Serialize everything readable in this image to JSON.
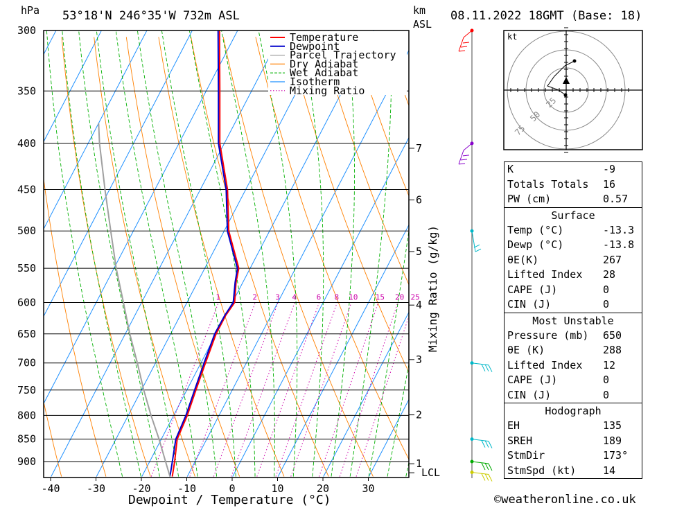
{
  "header": {
    "unit_left": "hPa",
    "location": "53°18'N  246°35'W  732m  ASL",
    "unit_km": "km",
    "unit_asl": "ASL",
    "datetime": "08.11.2022  18GMT  (Base: 18)"
  },
  "chart_data": {
    "type": "line",
    "subtype": "skew-T log-P sounding diagram",
    "xlabel": "Dewpoint / Temperature (°C)",
    "ylabel": "hPa",
    "right_axis_label": "Mixing Ratio (g/kg)",
    "x_ticks": [
      "-40",
      "-30",
      "-20",
      "-10",
      "0",
      "10",
      "20",
      "30"
    ],
    "xlim": [
      -42,
      38
    ],
    "pressure_levels": [
      300,
      350,
      400,
      450,
      500,
      550,
      600,
      650,
      700,
      750,
      800,
      850,
      900
    ],
    "pressure_labels": [
      "300",
      "350",
      "400",
      "450",
      "500",
      "550",
      "600",
      "650",
      "700",
      "750",
      "800",
      "850",
      "900"
    ],
    "ylim": [
      300,
      935
    ],
    "height_km": [
      {
        "p": 405,
        "label": "7"
      },
      {
        "p": 462,
        "label": "6"
      },
      {
        "p": 527,
        "label": "5"
      },
      {
        "p": 604,
        "label": "4"
      },
      {
        "p": 694,
        "label": "3"
      },
      {
        "p": 799,
        "label": "2"
      },
      {
        "p": 905,
        "label": "1"
      },
      {
        "p": 926,
        "label": "LCL"
      }
    ],
    "mixing_ratio_labels": [
      "1",
      "2",
      "3",
      "4",
      "6",
      "8",
      "10",
      "15",
      "20",
      "25"
    ],
    "legend": [
      {
        "name": "Temperature",
        "color": "#ff0000",
        "style": "solid"
      },
      {
        "name": "Dewpoint",
        "color": "#0000cc",
        "style": "solid"
      },
      {
        "name": "Parcel Trajectory",
        "color": "#a0a0a0",
        "style": "solid"
      },
      {
        "name": "Dry Adiabat",
        "color": "#ff8000",
        "style": "solid"
      },
      {
        "name": "Wet Adiabat",
        "color": "#00b000",
        "style": "dashed"
      },
      {
        "name": "Isotherm",
        "color": "#1e90ff",
        "style": "solid"
      },
      {
        "name": "Mixing Ratio",
        "color": "#cc00aa",
        "style": "dotted"
      }
    ],
    "series": [
      {
        "name": "Temperature",
        "color": "#ff0000",
        "points": [
          [
            935,
            -13.3
          ],
          [
            900,
            -14.5
          ],
          [
            850,
            -16.5
          ],
          [
            800,
            -17.0
          ],
          [
            750,
            -18.0
          ],
          [
            700,
            -19.0
          ],
          [
            650,
            -20.0
          ],
          [
            620,
            -20.0
          ],
          [
            600,
            -19.5
          ],
          [
            570,
            -21.5
          ],
          [
            550,
            -22.5
          ],
          [
            500,
            -29.0
          ],
          [
            450,
            -34.0
          ],
          [
            400,
            -41.0
          ],
          [
            350,
            -47.0
          ],
          [
            300,
            -54.0
          ]
        ]
      },
      {
        "name": "Dewpoint",
        "color": "#0000cc",
        "points": [
          [
            935,
            -13.8
          ],
          [
            900,
            -15.0
          ],
          [
            850,
            -16.8
          ],
          [
            800,
            -17.3
          ],
          [
            750,
            -18.3
          ],
          [
            700,
            -19.3
          ],
          [
            650,
            -20.3
          ],
          [
            620,
            -20.2
          ],
          [
            600,
            -19.8
          ],
          [
            570,
            -21.7
          ],
          [
            550,
            -22.8
          ],
          [
            500,
            -29.3
          ],
          [
            450,
            -34.3
          ],
          [
            400,
            -41.3
          ],
          [
            350,
            -47.3
          ],
          [
            300,
            -54.3
          ]
        ]
      },
      {
        "name": "Parcel Trajectory",
        "color": "#a0a0a0",
        "points": [
          [
            935,
            -13.8
          ],
          [
            900,
            -16.5
          ],
          [
            850,
            -20.5
          ],
          [
            800,
            -25.0
          ],
          [
            750,
            -29.5
          ],
          [
            700,
            -34.0
          ],
          [
            650,
            -39.0
          ],
          [
            600,
            -44.0
          ],
          [
            550,
            -49.5
          ],
          [
            500,
            -55.0
          ],
          [
            450,
            -61.0
          ],
          [
            400,
            -67.5
          ],
          [
            380,
            -70.0
          ]
        ]
      }
    ],
    "wind_barbs_levels": [
      300,
      400,
      500,
      700,
      850,
      900,
      925
    ],
    "hodograph": {
      "unit": "kt",
      "ring_labels": [
        "25",
        "50",
        "75"
      ]
    }
  },
  "stats": {
    "indices": [
      {
        "label": "K",
        "value": "-9"
      },
      {
        "label": "Totals Totals",
        "value": "16"
      },
      {
        "label": "PW (cm)",
        "value": "0.57"
      }
    ],
    "surface": {
      "title": "Surface",
      "rows": [
        {
          "label": "Temp (°C)",
          "value": "-13.3"
        },
        {
          "label": "Dewp (°C)",
          "value": "-13.8"
        },
        {
          "label": "θE(K)",
          "value": "267"
        },
        {
          "label": "Lifted Index",
          "value": "28"
        },
        {
          "label": "CAPE (J)",
          "value": "0"
        },
        {
          "label": "CIN (J)",
          "value": "0"
        }
      ]
    },
    "most_unstable": {
      "title": "Most Unstable",
      "rows": [
        {
          "label": "Pressure (mb)",
          "value": "650"
        },
        {
          "label": "θE (K)",
          "value": "288"
        },
        {
          "label": "Lifted Index",
          "value": "12"
        },
        {
          "label": "CAPE (J)",
          "value": "0"
        },
        {
          "label": "CIN (J)",
          "value": "0"
        }
      ]
    },
    "hodograph": {
      "title": "Hodograph",
      "rows": [
        {
          "label": "EH",
          "value": "135"
        },
        {
          "label": "SREH",
          "value": "189"
        },
        {
          "label": "StmDir",
          "value": "173°"
        },
        {
          "label": "StmSpd (kt)",
          "value": "14"
        }
      ]
    }
  },
  "footer": {
    "copyright": "©weatheronline.co.uk"
  }
}
